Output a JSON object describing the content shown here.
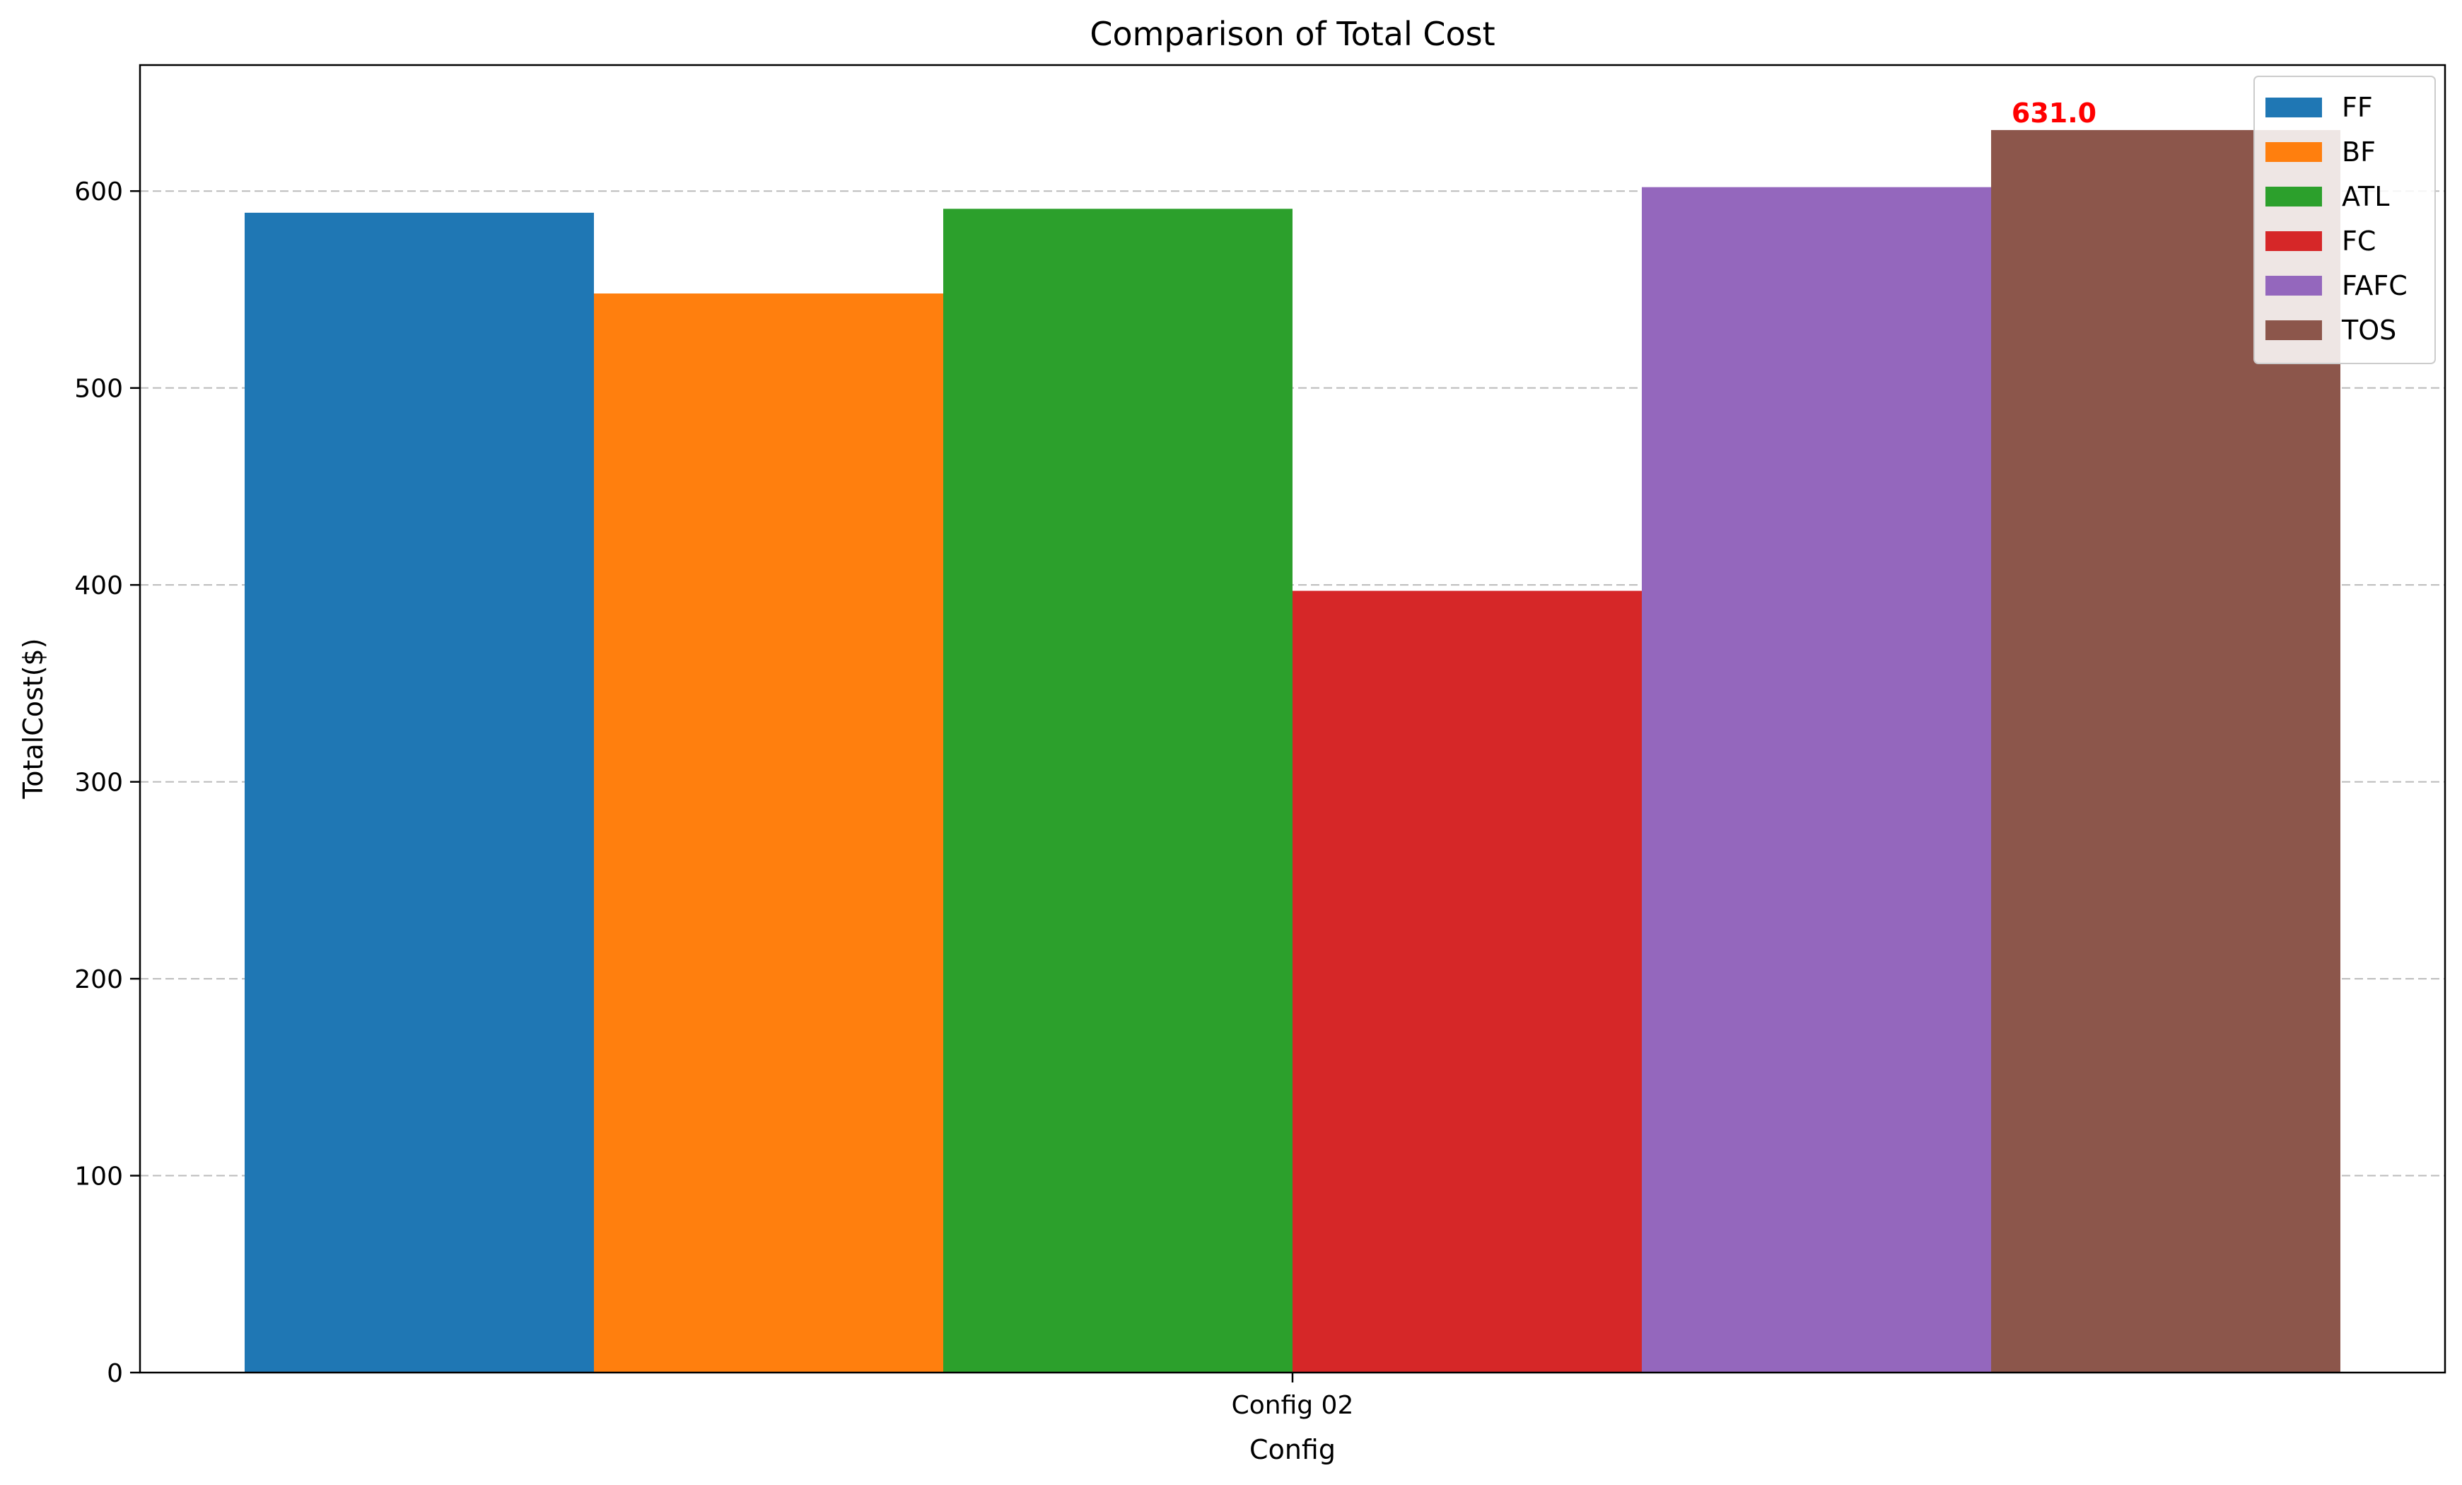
{
  "chart_data": {
    "type": "bar",
    "title": "Comparison of Total Cost",
    "xlabel": "Config",
    "ylabel": "TotalCost($)",
    "categories": [
      "Config 02"
    ],
    "series": [
      {
        "name": "FF",
        "values": [
          589
        ],
        "color": "#1f77b4"
      },
      {
        "name": "BF",
        "values": [
          548
        ],
        "color": "#ff7f0e"
      },
      {
        "name": "ATL",
        "values": [
          591
        ],
        "color": "#2ca02c"
      },
      {
        "name": "FC",
        "values": [
          397
        ],
        "color": "#d62728"
      },
      {
        "name": "FAFC",
        "values": [
          602
        ],
        "color": "#9467bd"
      },
      {
        "name": "TOS",
        "values": [
          631
        ],
        "color": "#8c564b"
      }
    ],
    "ylim": [
      0,
      664
    ],
    "yticks": [
      0,
      100,
      200,
      300,
      400,
      500,
      600
    ],
    "grid": "y-dashed",
    "legend_position": "top-right",
    "annotations": [
      {
        "series": "TOS",
        "text": "631.0",
        "color": "#ff0000"
      }
    ]
  }
}
